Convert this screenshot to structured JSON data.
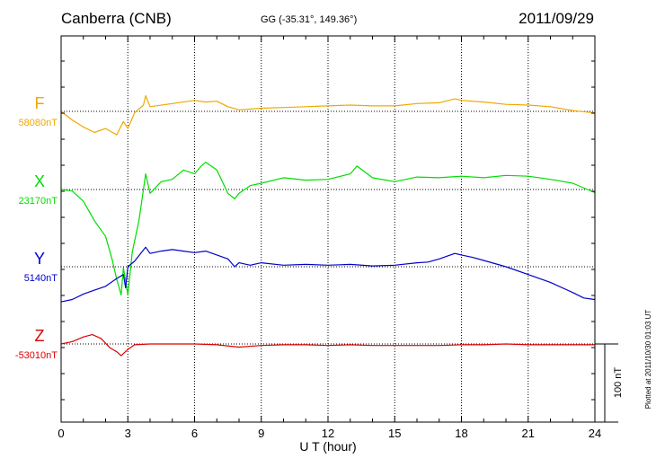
{
  "header": {
    "station": "Canberra (CNB)",
    "coordinates": "GG (-35.31°, 149.36°)",
    "date": "2011/09/29"
  },
  "plotted_note": "Plotted at 2011/10/30 01:03 UT",
  "chart_data": {
    "type": "line",
    "title": "Canberra (CNB)",
    "xlabel": "U T (hour)",
    "xlim": [
      0,
      24
    ],
    "x_ticks": [
      "0",
      "3",
      "6",
      "9",
      "12",
      "15",
      "18",
      "21",
      "24"
    ],
    "grid": true,
    "scale_bar": {
      "label": "100 nT",
      "value": 100
    },
    "series": [
      {
        "name": "F",
        "baseline_label": "58080nT",
        "baseline": 58080,
        "color": "#f0a800",
        "points": [
          [
            0,
            58080
          ],
          [
            0.5,
            58069
          ],
          [
            1,
            58060
          ],
          [
            1.5,
            58053
          ],
          [
            2,
            58058
          ],
          [
            2.5,
            58050
          ],
          [
            2.8,
            58067
          ],
          [
            3,
            58058
          ],
          [
            3.3,
            58078
          ],
          [
            3.7,
            58088
          ],
          [
            3.8,
            58100
          ],
          [
            4,
            58086
          ],
          [
            5,
            58090
          ],
          [
            6,
            58094
          ],
          [
            6.5,
            58092
          ],
          [
            7,
            58093
          ],
          [
            7.5,
            58086
          ],
          [
            8,
            58082
          ],
          [
            9,
            58084
          ],
          [
            10,
            58085
          ],
          [
            11,
            58086
          ],
          [
            12,
            58087
          ],
          [
            13,
            58088
          ],
          [
            14,
            58087
          ],
          [
            15,
            58087
          ],
          [
            16,
            58090
          ],
          [
            17,
            58091
          ],
          [
            17.7,
            58096
          ],
          [
            18,
            58094
          ],
          [
            19,
            58092
          ],
          [
            20,
            58089
          ],
          [
            21,
            58088
          ],
          [
            22,
            58086
          ],
          [
            23,
            58081
          ],
          [
            24,
            58078
          ]
        ]
      },
      {
        "name": "X",
        "baseline_label": "23170nT",
        "baseline": 23170,
        "color": "#00dd00",
        "points": [
          [
            0,
            23170
          ],
          [
            0.5,
            23168
          ],
          [
            1,
            23155
          ],
          [
            1.5,
            23130
          ],
          [
            2,
            23110
          ],
          [
            2.3,
            23080
          ],
          [
            2.5,
            23055
          ],
          [
            2.7,
            23035
          ],
          [
            2.8,
            23070
          ],
          [
            3,
            23035
          ],
          [
            3.2,
            23090
          ],
          [
            3.5,
            23130
          ],
          [
            3.8,
            23190
          ],
          [
            4,
            23165
          ],
          [
            4.5,
            23180
          ],
          [
            5,
            23183
          ],
          [
            5.5,
            23195
          ],
          [
            6,
            23190
          ],
          [
            6.3,
            23200
          ],
          [
            6.5,
            23205
          ],
          [
            7,
            23195
          ],
          [
            7.5,
            23165
          ],
          [
            7.8,
            23158
          ],
          [
            8,
            23165
          ],
          [
            8.5,
            23175
          ],
          [
            9,
            23178
          ],
          [
            10,
            23185
          ],
          [
            11,
            23182
          ],
          [
            12,
            23183
          ],
          [
            13,
            23190
          ],
          [
            13.3,
            23200
          ],
          [
            14,
            23185
          ],
          [
            15,
            23180
          ],
          [
            16,
            23186
          ],
          [
            17,
            23185
          ],
          [
            18,
            23187
          ],
          [
            19,
            23185
          ],
          [
            20,
            23188
          ],
          [
            21,
            23187
          ],
          [
            22,
            23183
          ],
          [
            23,
            23178
          ],
          [
            24,
            23166
          ]
        ]
      },
      {
        "name": "Y",
        "baseline_label": "5140nT",
        "baseline": 5140,
        "color": "#0000cc",
        "points": [
          [
            0,
            5095
          ],
          [
            0.5,
            5098
          ],
          [
            1,
            5105
          ],
          [
            1.5,
            5110
          ],
          [
            2,
            5115
          ],
          [
            2.5,
            5125
          ],
          [
            2.8,
            5130
          ],
          [
            2.9,
            5113
          ],
          [
            3,
            5140
          ],
          [
            3.3,
            5147
          ],
          [
            3.8,
            5165
          ],
          [
            4,
            5157
          ],
          [
            4.5,
            5160
          ],
          [
            5,
            5162
          ],
          [
            5.5,
            5160
          ],
          [
            6,
            5158
          ],
          [
            6.5,
            5160
          ],
          [
            7,
            5155
          ],
          [
            7.5,
            5150
          ],
          [
            7.8,
            5140
          ],
          [
            8,
            5145
          ],
          [
            8.5,
            5142
          ],
          [
            9,
            5145
          ],
          [
            10,
            5142
          ],
          [
            11,
            5143
          ],
          [
            12,
            5142
          ],
          [
            13,
            5143
          ],
          [
            14,
            5141
          ],
          [
            15,
            5142
          ],
          [
            16,
            5145
          ],
          [
            16.5,
            5146
          ],
          [
            17,
            5150
          ],
          [
            17.7,
            5157
          ],
          [
            18,
            5155
          ],
          [
            18.5,
            5152
          ],
          [
            19,
            5148
          ],
          [
            20,
            5140
          ],
          [
            21,
            5130
          ],
          [
            22,
            5120
          ],
          [
            23,
            5107
          ],
          [
            23.5,
            5100
          ],
          [
            24,
            5098
          ]
        ]
      },
      {
        "name": "Z",
        "baseline_label": "-53010nT",
        "baseline": -53010,
        "color": "#dd0000",
        "points": [
          [
            0,
            -53010
          ],
          [
            0.5,
            -53007
          ],
          [
            1,
            -53001
          ],
          [
            1.4,
            -52998
          ],
          [
            1.8,
            -53003
          ],
          [
            2.2,
            -53015
          ],
          [
            2.5,
            -53020
          ],
          [
            2.7,
            -53025
          ],
          [
            3,
            -53017
          ],
          [
            3.3,
            -53011
          ],
          [
            4,
            -53010
          ],
          [
            5,
            -53010
          ],
          [
            6,
            -53010
          ],
          [
            7,
            -53011
          ],
          [
            8,
            -53014
          ],
          [
            9,
            -53012
          ],
          [
            10,
            -53011
          ],
          [
            11,
            -53011
          ],
          [
            12,
            -53012
          ],
          [
            13,
            -53011
          ],
          [
            14,
            -53012
          ],
          [
            15,
            -53012
          ],
          [
            16,
            -53012
          ],
          [
            17,
            -53012
          ],
          [
            18,
            -53011
          ],
          [
            19,
            -53011
          ],
          [
            20,
            -53010
          ],
          [
            21,
            -53011
          ],
          [
            22,
            -53011
          ],
          [
            23,
            -53011
          ],
          [
            24,
            -53011
          ]
        ]
      }
    ]
  }
}
